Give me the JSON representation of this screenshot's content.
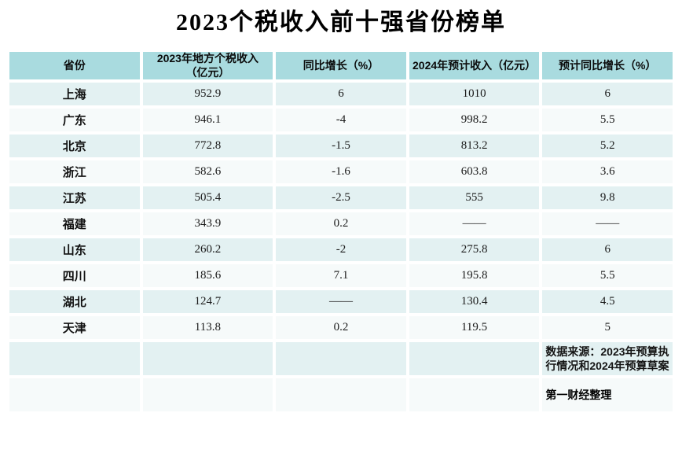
{
  "title": "2023个税收入前十强省份榜单",
  "table": {
    "headers": [
      "省份",
      "2023年地方个税收入\n（亿元）",
      "同比增长（%）",
      "2024年预计收入（亿元）",
      "预计同比增长（%）"
    ],
    "source_note": "数据来源：2023年预算执行情况和2024年预算草案",
    "credit": "第一财经整理"
  },
  "colors": {
    "header_bg": "#a9dbdf",
    "row_odd_bg": "#e3f1f2",
    "row_even_bg": "#f6fafa",
    "page_bg": "#ffffff",
    "title_text": "#000000"
  },
  "chart_data": {
    "type": "table",
    "title": "2023个税收入前十强省份榜单",
    "columns": [
      "省份",
      "2023年地方个税收入（亿元）",
      "同比增长（%）",
      "2024年预计收入（亿元）",
      "预计同比增长（%）"
    ],
    "rows": [
      [
        "上海",
        "952.9",
        "6",
        "1010",
        "6"
      ],
      [
        "广东",
        "946.1",
        "-4",
        "998.2",
        "5.5"
      ],
      [
        "北京",
        "772.8",
        "-1.5",
        "813.2",
        "5.2"
      ],
      [
        "浙江",
        "582.6",
        "-1.6",
        "603.8",
        "3.6"
      ],
      [
        "江苏",
        "505.4",
        "-2.5",
        "555",
        "9.8"
      ],
      [
        "福建",
        "343.9",
        "0.2",
        "——",
        "——"
      ],
      [
        "山东",
        "260.2",
        "-2",
        "275.8",
        "6"
      ],
      [
        "四川",
        "185.6",
        "7.1",
        "195.8",
        "5.5"
      ],
      [
        "湖北",
        "124.7",
        "——",
        "130.4",
        "4.5"
      ],
      [
        "天津",
        "113.8",
        "0.2",
        "119.5",
        "5"
      ]
    ],
    "source": "数据来源：2023年预算执行情况和2024年预算草案",
    "credit": "第一财经整理"
  }
}
